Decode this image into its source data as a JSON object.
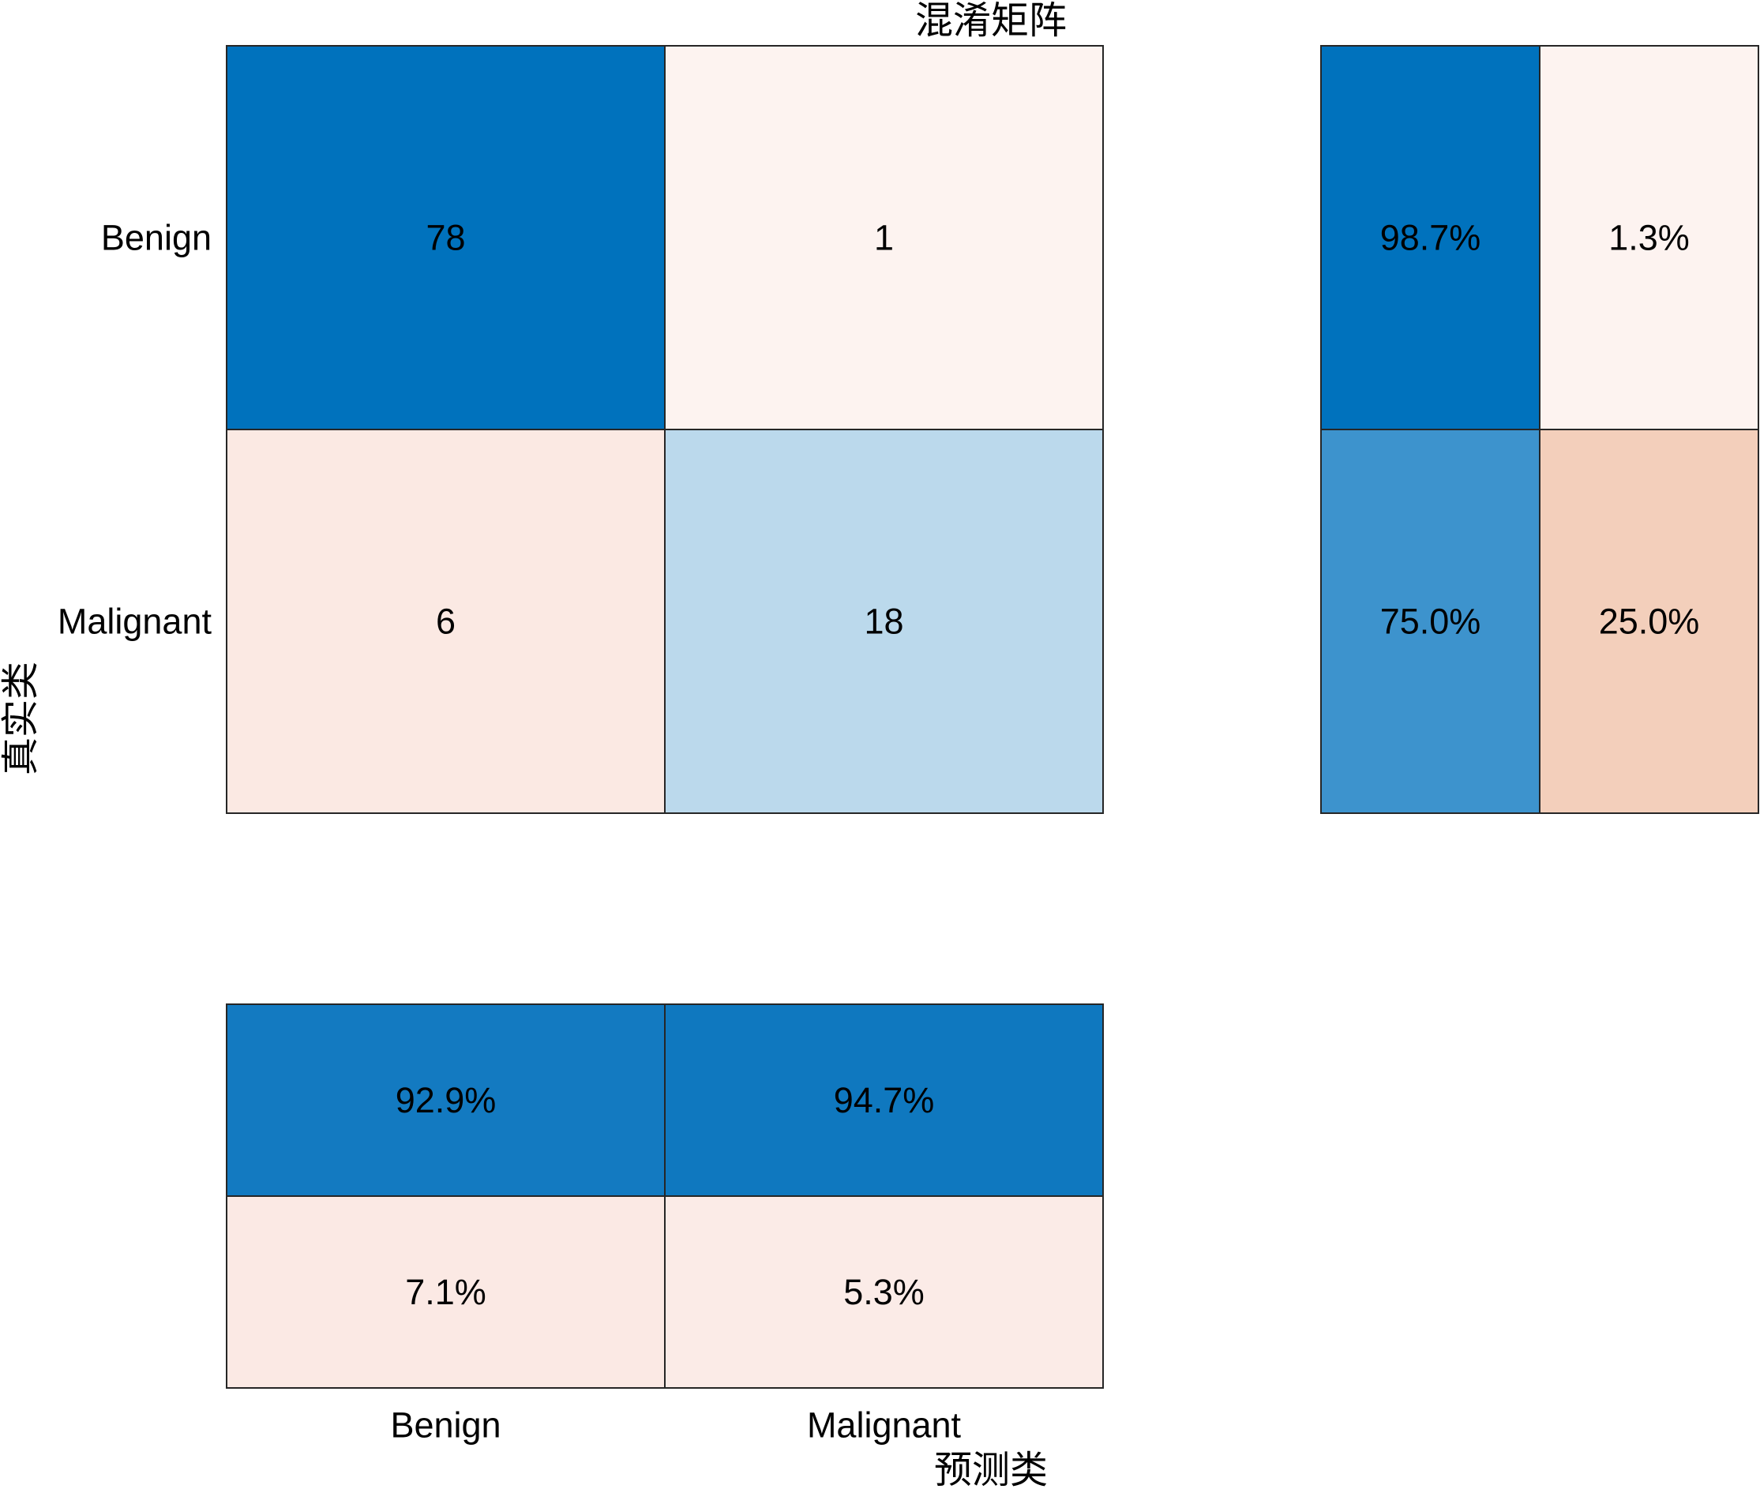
{
  "chart_data": {
    "type": "heatmap",
    "title": "混淆矩阵",
    "xlabel": "预测类",
    "ylabel": "真实类",
    "classes": [
      "Benign",
      "Malignant"
    ],
    "matrix": [
      [
        78,
        1
      ],
      [
        6,
        18
      ]
    ],
    "row_summary": [
      [
        "98.7%",
        "1.3%"
      ],
      [
        "75.0%",
        "25.0%"
      ]
    ],
    "column_summary": [
      [
        "92.9%",
        "94.7%"
      ],
      [
        "7.1%",
        "5.3%"
      ]
    ],
    "colors": {
      "correct_dark": "#0072BD",
      "main_offdiag_low": "#FDF3F0",
      "main_offdiag_mid": "#FBE9E3",
      "main_diag_light": "#BBD9EC",
      "row_summary_colors": [
        [
          "#0072BD",
          "#FDF3F0"
        ],
        [
          "#3D93CD",
          "#F3CFBB"
        ]
      ],
      "col_summary_colors": [
        [
          "#137AC1",
          "#0F78BF"
        ],
        [
          "#FBE9E4",
          "#FBEBE7"
        ]
      ],
      "dark_text": "#FFFFFF",
      "light_text": "#000000",
      "border": "#262626"
    }
  }
}
